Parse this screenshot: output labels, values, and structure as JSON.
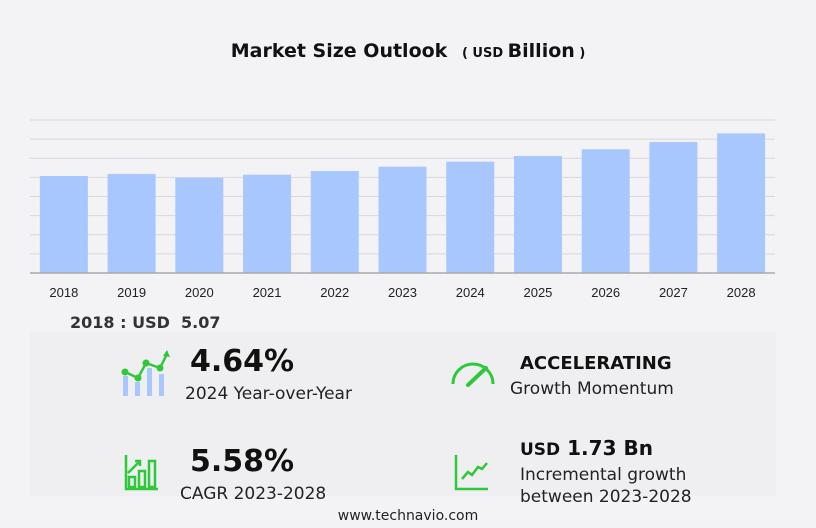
{
  "title": {
    "main": "Market Size Outlook",
    "unit_prefix": "USD",
    "unit": "Billion"
  },
  "chart_data": {
    "type": "bar",
    "title": "Market Size Outlook ( USD Billion )",
    "categories": [
      "2018",
      "2019",
      "2020",
      "2021",
      "2022",
      "2023",
      "2024",
      "2025",
      "2026",
      "2027",
      "2028"
    ],
    "values": [
      5.07,
      5.18,
      4.98,
      5.14,
      5.33,
      5.56,
      5.82,
      6.12,
      6.47,
      6.85,
      7.3
    ],
    "ylim": [
      0,
      8
    ],
    "grid": true,
    "bar_color": "#a7c7fe",
    "xlabel": "",
    "ylabel": ""
  },
  "first_value": "2018 : USD  5.07",
  "kpis": {
    "yoy": {
      "value": "4.64%",
      "label": "2024 Year-over-Year"
    },
    "momentum": {
      "value": "ACCELERATING",
      "label": "Growth Momentum"
    },
    "cagr": {
      "value": "5.58%",
      "label": "CAGR 2023-2028"
    },
    "incremental": {
      "prefix": "USD",
      "value": "1.73 Bn",
      "label1": "Incremental growth",
      "label2": "between 2023-2028"
    }
  },
  "accent_color": "#2ec83a",
  "footer": "www.technavio.com"
}
